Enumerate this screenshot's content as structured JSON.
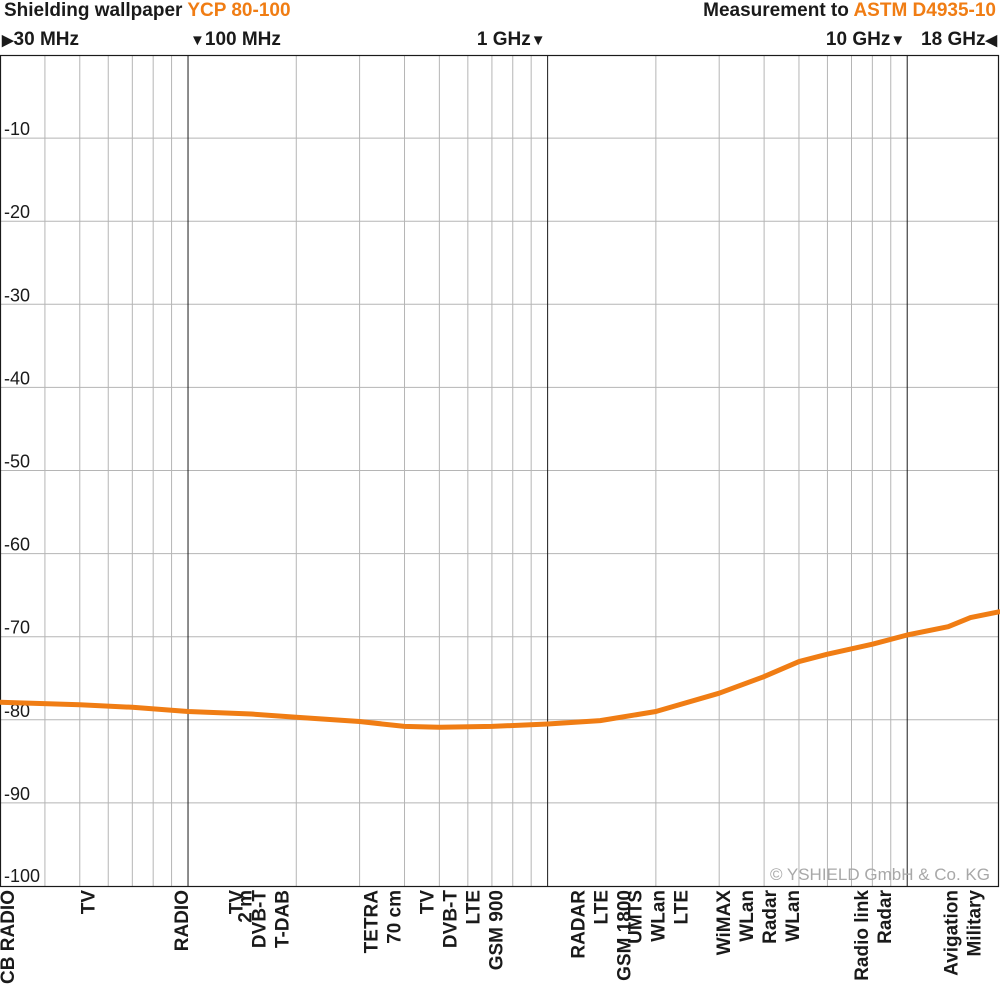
{
  "header": {
    "title_prefix": "Shielding wallpaper ",
    "title_product": "YCP 80-100",
    "measure_prefix": "Measurement to ",
    "measure_standard": "ASTM D4935-10"
  },
  "freq_markers": [
    {
      "label": "30 MHz",
      "freq": 30,
      "arrow": "▶",
      "arrow_side": "left"
    },
    {
      "label": "100 MHz",
      "freq": 100,
      "arrow": "▼",
      "arrow_side": "left"
    },
    {
      "label": "1 GHz",
      "freq": 1000,
      "arrow": "▼",
      "arrow_side": "right"
    },
    {
      "label": "10 GHz",
      "freq": 10000,
      "arrow": "▼",
      "arrow_side": "right"
    },
    {
      "label": "18 GHz",
      "freq": 18000,
      "arrow": "◀",
      "arrow_side": "right"
    }
  ],
  "copyright": "© YSHIELD GmbH & Co. KG",
  "colors": {
    "curve": "#f07d14",
    "grid_minor": "#b5b5b5",
    "grid_major": "#1a1a1a",
    "text": "#1a1a1a"
  },
  "chart_data": {
    "type": "line",
    "x_scale": "log",
    "xlim": [
      30,
      18000
    ],
    "ylim": [
      -100,
      0
    ],
    "y_ticks": [
      -10,
      -20,
      -30,
      -40,
      -50,
      -60,
      -70,
      -80,
      -90,
      -100
    ],
    "grid": true,
    "series": [
      {
        "x": [
          30,
          50,
          70,
          100,
          150,
          200,
          300,
          400,
          500,
          700,
          1000,
          1400,
          2000,
          3000,
          4000,
          5000,
          6000,
          8000,
          10000,
          13000,
          15000,
          18000
        ],
        "y": [
          -77.9,
          -78.2,
          -78.5,
          -79.0,
          -79.3,
          -79.7,
          -80.2,
          -80.8,
          -80.9,
          -80.8,
          -80.5,
          -80.1,
          -79.0,
          -76.8,
          -74.8,
          -73.0,
          -72.1,
          -70.9,
          -69.8,
          -68.8,
          -67.7,
          -67.0
        ]
      }
    ],
    "band_labels": [
      {
        "freq": 30,
        "lines": [
          "CB RADIO"
        ]
      },
      {
        "freq": 55,
        "lines": [
          "TV"
        ]
      },
      {
        "freq": 100,
        "lines": [
          "RADIO"
        ]
      },
      {
        "freq": 150,
        "lines": [
          "2 m"
        ]
      },
      {
        "freq": 190,
        "lines": [
          "TV",
          "DVB-T",
          "T-DAB"
        ]
      },
      {
        "freq": 390,
        "lines": [
          "TETRA",
          "70 cm"
        ]
      },
      {
        "freq": 750,
        "lines": [
          "TV",
          "DVB-T",
          "LTE",
          "GSM 900"
        ]
      },
      {
        "freq": 1700,
        "lines": [
          "RADAR",
          "LTE",
          "GSM 1800"
        ]
      },
      {
        "freq": 2450,
        "lines": [
          "UMTS",
          "WLan",
          "LTE"
        ]
      },
      {
        "freq": 5000,
        "lines": [
          "WiMAX",
          "WLan",
          "Radar",
          "WLan"
        ]
      },
      {
        "freq": 9000,
        "lines": [
          "Radio link",
          "Radar"
        ]
      },
      {
        "freq": 16000,
        "lines": [
          "Avigation",
          "Military"
        ]
      }
    ]
  }
}
